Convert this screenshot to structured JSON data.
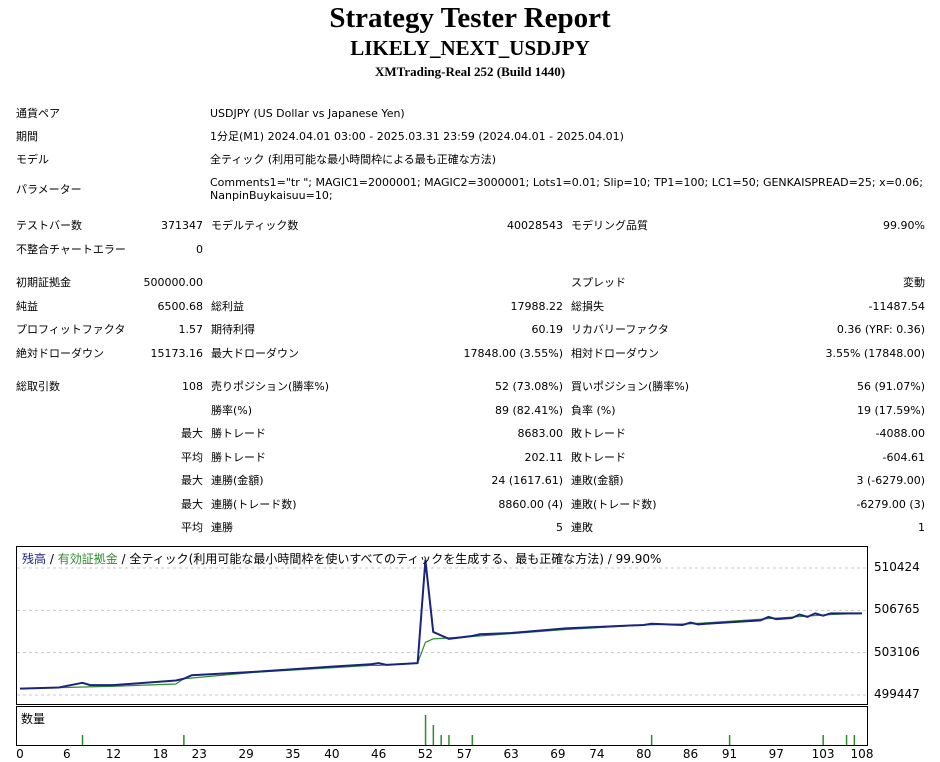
{
  "report": {
    "title": "Strategy Tester Report",
    "ea_name": "LIKELY_NEXT_USDJPY",
    "server": "XMTrading-Real 252 (Build 1440)"
  },
  "settings": {
    "symbol_label": "通貨ペア",
    "symbol_value": "USDJPY (US Dollar vs Japanese Yen)",
    "period_label": "期間",
    "period_value": "1分足(M1) 2024.04.01 03:00 - 2025.03.31 23:59 (2024.04.01 - 2025.04.01)",
    "model_label": "モデル",
    "model_value": "全ティック (利用可能な最小時間枠による最も正確な方法)",
    "params_label": "パラメーター",
    "params_value": "Comments1=\"tr \"; MAGIC1=2000001; MAGIC2=3000001; Lots1=0.01; Slip=10; TP1=100; LC1=50; GENKAISPREAD=25; x=0.06; NanpinBuykaisuu=10;"
  },
  "bars": {
    "bars_label": "テストバー数",
    "bars_value": "371347",
    "ticks_label": "モデルティック数",
    "ticks_value": "40028543",
    "quality_label": "モデリング品質",
    "quality_value": "99.90%",
    "errors_label": "不整合チャートエラー",
    "errors_value": "0"
  },
  "summary": {
    "deposit_label": "初期証拠金",
    "deposit_value": "500000.00",
    "spread_label": "スプレッド",
    "spread_value": "変動",
    "net_label": "純益",
    "net_value": "6500.68",
    "gross_profit_label": "総利益",
    "gross_profit_value": "17988.22",
    "gross_loss_label": "総損失",
    "gross_loss_value": "-11487.54",
    "pf_label": "プロフィットファクタ",
    "pf_value": "1.57",
    "payoff_label": "期待利得",
    "payoff_value": "60.19",
    "rf_label": "リカバリーファクタ",
    "rf_value": "0.36 (YRF: 0.36)",
    "abs_dd_label": "絶対ドローダウン",
    "abs_dd_value": "15173.16",
    "max_dd_label": "最大ドローダウン",
    "max_dd_value": "17848.00 (3.55%)",
    "rel_dd_label": "相対ドローダウン",
    "rel_dd_value": "3.55% (17848.00)"
  },
  "trades": {
    "total_label": "総取引数",
    "total_value": "108",
    "short_label": "売りポジション(勝率%)",
    "short_value": "52 (73.08%)",
    "long_label": "買いポジション(勝率%)",
    "long_value": "56 (91.07%)",
    "winrate_label": "勝率(%)",
    "winrate_value": "89 (82.41%)",
    "lossrate_label": "負率 (%)",
    "lossrate_value": "19 (17.59%)",
    "max_prefix": "最大",
    "avg_prefix": "平均",
    "max_win_label": "勝トレード",
    "max_win_value": "8683.00",
    "max_loss_label": "敗トレード",
    "max_loss_value": "-4088.00",
    "avg_win_label": "勝トレード",
    "avg_win_value": "202.11",
    "avg_loss_label": "敗トレード",
    "avg_loss_value": "-604.61",
    "cons_wins_amt_label": "連勝(金額)",
    "cons_wins_amt_value": "24 (1617.61)",
    "cons_loss_amt_label": "連敗(金額)",
    "cons_loss_amt_value": "3 (-6279.00)",
    "cons_profit_label": "連勝(トレード数)",
    "cons_profit_value": "8860.00 (4)",
    "cons_loss_label": "連敗(トレード数)",
    "cons_loss_value": "-6279.00 (3)",
    "avg_cons_win_label": "連勝",
    "avg_cons_win_value": "5",
    "avg_cons_loss_label": "連敗",
    "avg_cons_loss_value": "1"
  },
  "chart": {
    "balance_label": "残高",
    "equity_label": "有効証拠金",
    "sep": " / ",
    "description": "全ティック(利用可能な最小時間枠を使いすべてのティックを生成する、最も正確な方法) / 99.90%",
    "volume_label": "数量",
    "colors": {
      "balance": "#1a237e",
      "equity": "#2e8b2e",
      "volume": "#2e8b2e"
    }
  },
  "chart_data": {
    "type": "line",
    "ylim": [
      499447,
      511200
    ],
    "y_ticks": [
      "510424",
      "506765",
      "503106",
      "499447"
    ],
    "x_ticks": [
      "0",
      "6",
      "12",
      "18",
      "23",
      "29",
      "35",
      "40",
      "46",
      "52",
      "57",
      "63",
      "69",
      "74",
      "80",
      "86",
      "91",
      "97",
      "103",
      "108"
    ],
    "series": [
      {
        "name": "残高",
        "x": [
          0,
          5,
          8,
          9,
          12,
          20,
          21,
          22,
          30,
          40,
          45,
          46,
          47,
          51,
          52,
          53,
          55,
          58,
          59,
          63,
          70,
          80,
          81,
          85,
          86,
          87,
          88,
          95,
          96,
          97,
          99,
          100,
          101,
          102,
          103,
          104,
          108
        ],
        "y": [
          500000,
          500100,
          500500,
          500300,
          500300,
          500700,
          500850,
          501150,
          501450,
          501900,
          502100,
          502200,
          502050,
          502200,
          511100,
          504900,
          504300,
          504550,
          504700,
          504800,
          505200,
          505500,
          505600,
          505500,
          505700,
          505550,
          505600,
          505900,
          506200,
          506000,
          506100,
          506400,
          506200,
          506500,
          506300,
          506500,
          506500
        ]
      },
      {
        "name": "有効証拠金",
        "x": [
          0,
          12,
          20,
          21,
          30,
          45,
          46,
          51,
          52,
          53,
          58,
          70,
          80,
          86,
          95,
          104,
          108
        ],
        "y": [
          500000,
          500200,
          500400,
          500850,
          501400,
          502000,
          502000,
          502200,
          504000,
          504300,
          504500,
          505100,
          505500,
          505600,
          506000,
          506400,
          506500
        ]
      }
    ],
    "volume": {
      "x": [
        8,
        21,
        52,
        53,
        54,
        55,
        58,
        81,
        91,
        103,
        106,
        107
      ],
      "values": [
        1,
        1,
        3,
        2,
        1,
        1,
        1,
        1,
        1,
        1,
        1,
        1
      ]
    }
  }
}
